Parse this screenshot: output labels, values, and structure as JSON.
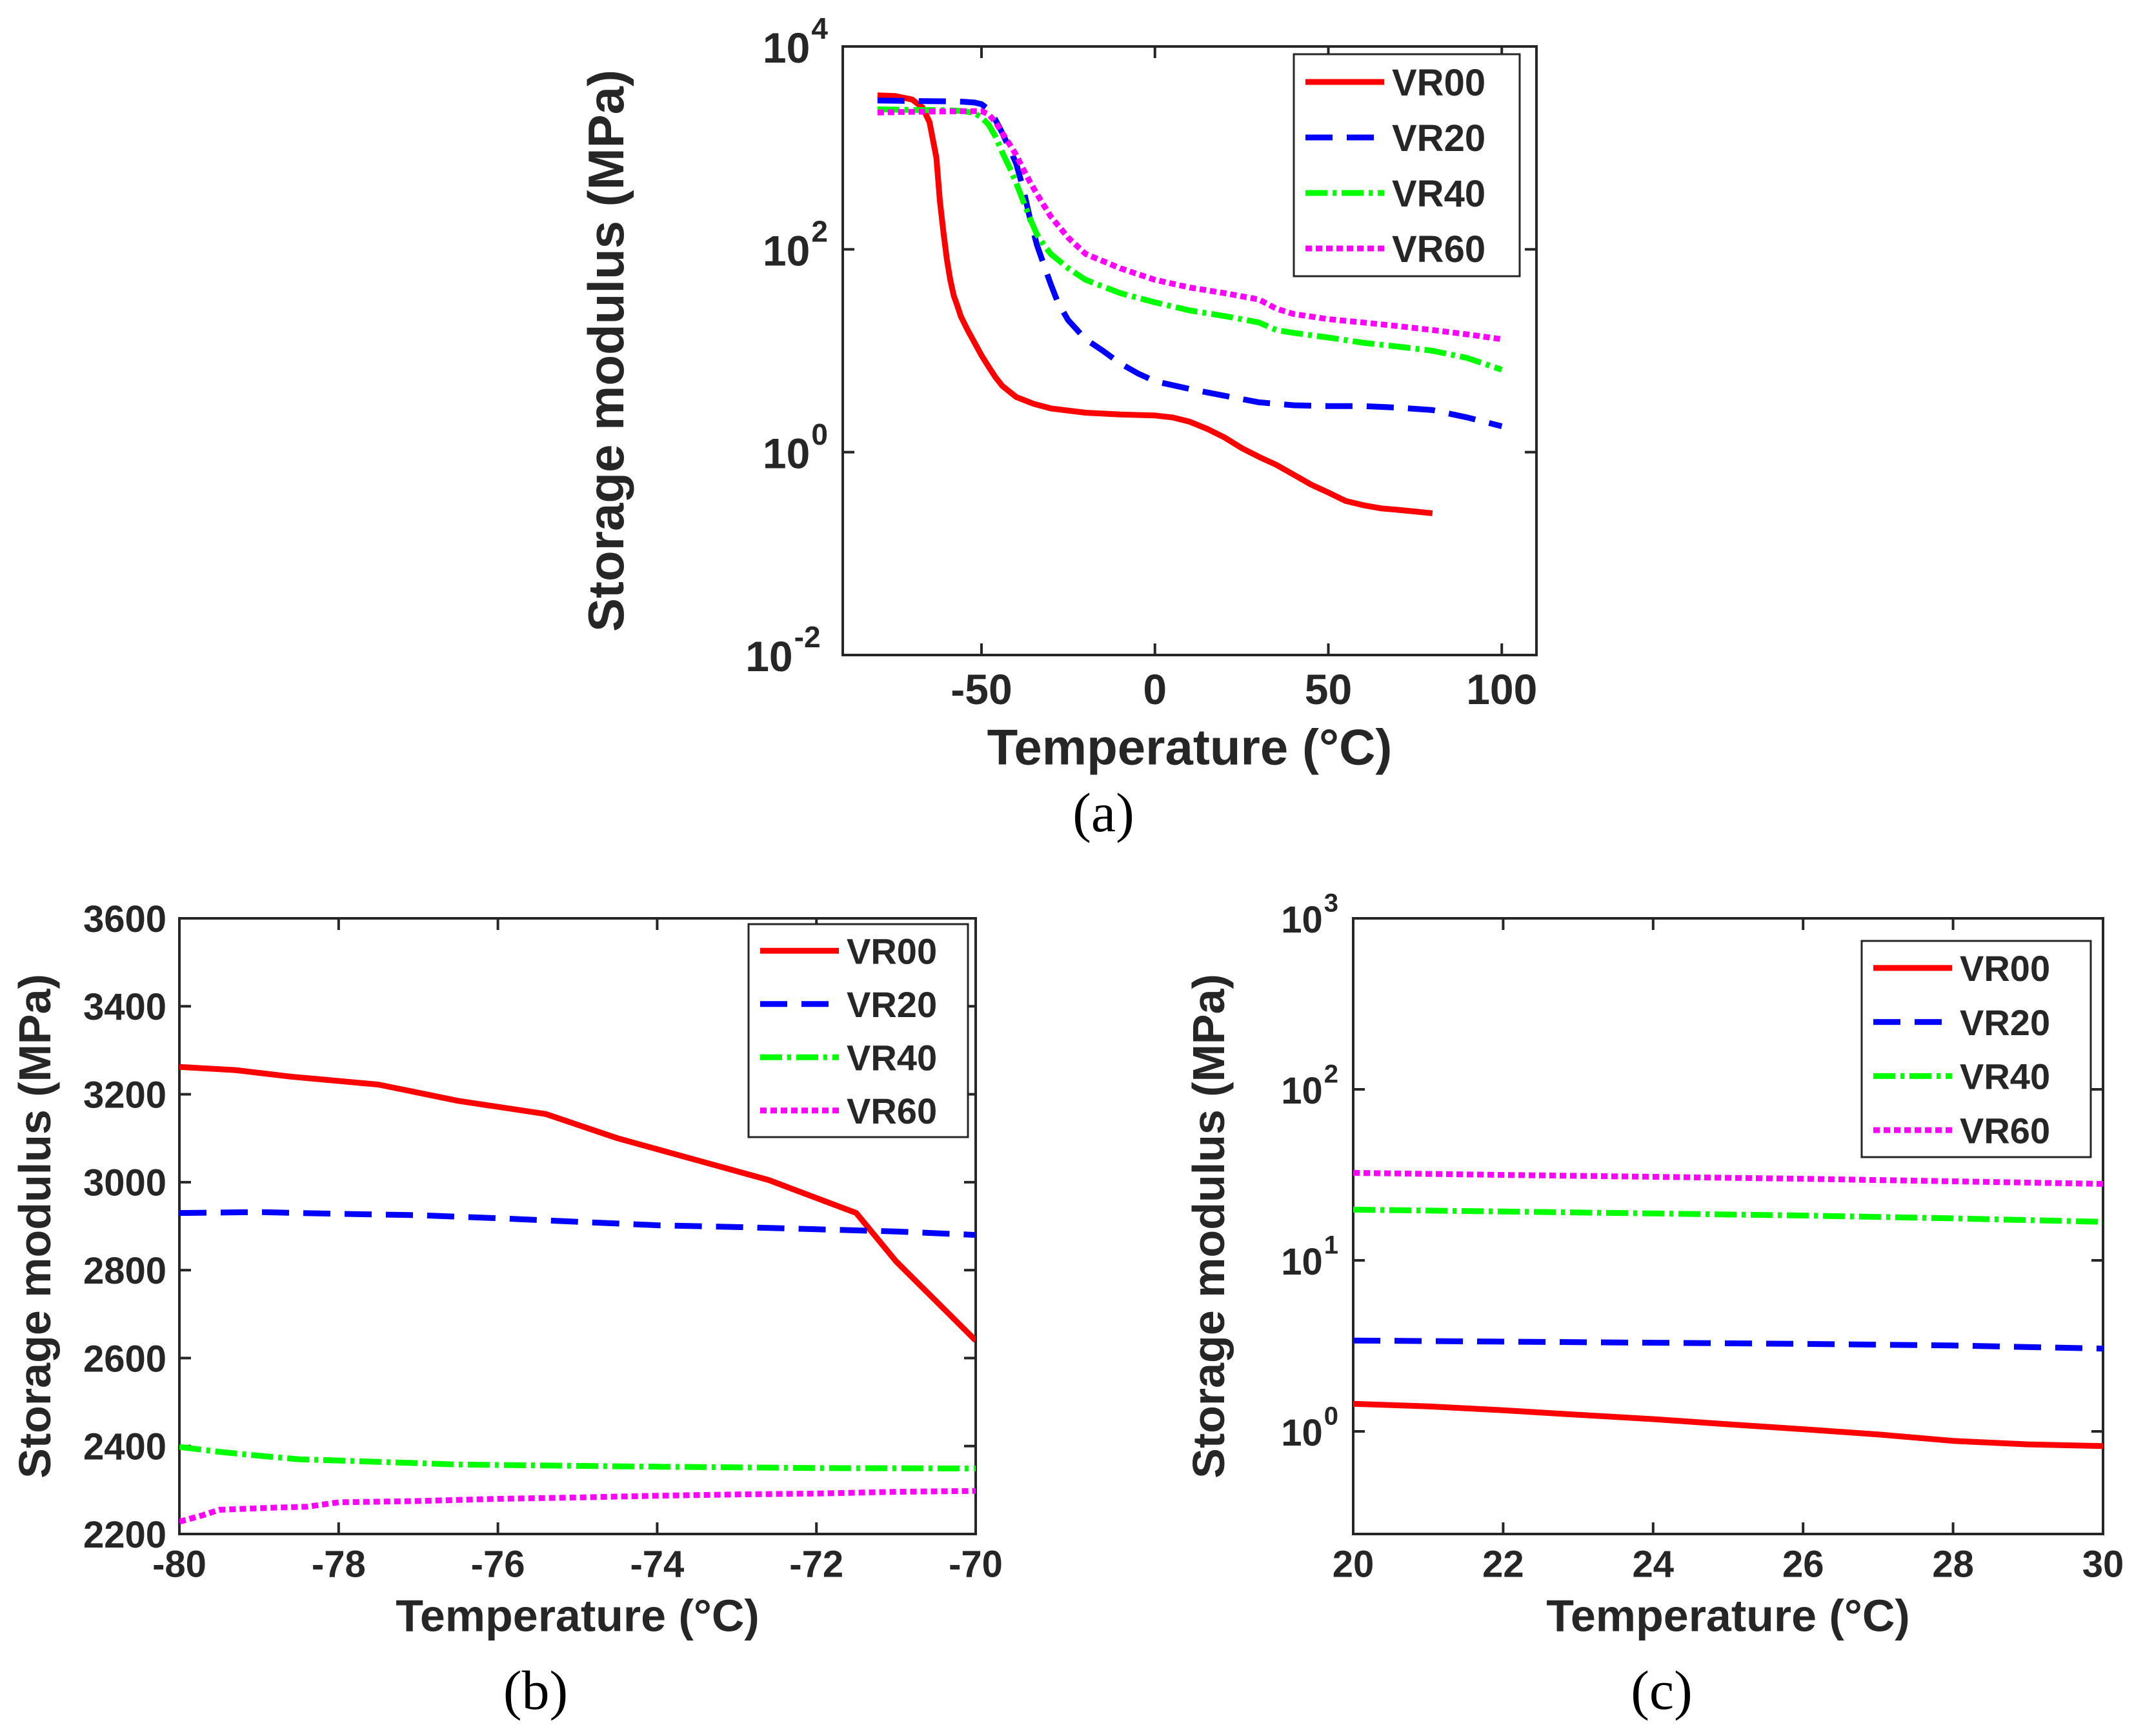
{
  "figure": {
    "captions": {
      "a": "(a)",
      "b": "(b)",
      "c": "(c)"
    }
  },
  "colors": {
    "VR00": "#ff0000",
    "VR20": "#0000ff",
    "VR40": "#00ff00",
    "VR60": "#ff00ff",
    "axis": "#262626"
  },
  "chart_data": [
    {
      "id": "a",
      "type": "line",
      "title": "",
      "xlabel": "Temperature (°C)",
      "ylabel": "Storage modulus (MPa)",
      "xlim": [
        -90,
        110
      ],
      "ylim_log10": [
        -2,
        4
      ],
      "yscale": "log",
      "xticks": [
        -50,
        0,
        50,
        100
      ],
      "xtick_labels": [
        "-50",
        "0",
        "50",
        "100"
      ],
      "yticks": [
        -2,
        0,
        2,
        4
      ],
      "ytick_labels": [
        {
          "base": "10",
          "exp": "-2"
        },
        {
          "base": "10",
          "exp": "0"
        },
        {
          "base": "10",
          "exp": "2"
        },
        {
          "base": "10",
          "exp": "4"
        }
      ],
      "legend_position": "top-right",
      "series": [
        {
          "name": "VR00",
          "style": "solid",
          "x": [
            -80,
            -75,
            -70,
            -67,
            -65,
            -63,
            -62,
            -61,
            -60,
            -59,
            -58,
            -57,
            -56,
            -54,
            -52,
            -50,
            -48,
            -46,
            -44,
            -40,
            -35,
            -30,
            -20,
            -10,
            0,
            5,
            10,
            15,
            20,
            25,
            30,
            35,
            40,
            45,
            50,
            55,
            60,
            65,
            70,
            75,
            80
          ],
          "y": [
            3300,
            3250,
            3000,
            2500,
            1800,
            800,
            300,
            150,
            80,
            50,
            35,
            28,
            22,
            16,
            12,
            9,
            7,
            5.5,
            4.5,
            3.5,
            3.0,
            2.7,
            2.45,
            2.35,
            2.3,
            2.2,
            2.0,
            1.7,
            1.4,
            1.1,
            0.9,
            0.75,
            0.6,
            0.48,
            0.4,
            0.33,
            0.3,
            0.28,
            0.27,
            0.26,
            0.25
          ]
        },
        {
          "name": "VR20",
          "style": "dashed",
          "x": [
            -80,
            -70,
            -60,
            -55,
            -52,
            -50,
            -48,
            -46,
            -44,
            -42,
            -40,
            -38,
            -36,
            -34,
            -32,
            -30,
            -28,
            -25,
            -20,
            -15,
            -10,
            -5,
            0,
            10,
            20,
            30,
            40,
            50,
            60,
            70,
            80,
            90,
            100
          ],
          "y": [
            2930,
            2900,
            2880,
            2850,
            2800,
            2700,
            2400,
            1900,
            1400,
            1000,
            700,
            400,
            200,
            110,
            70,
            45,
            30,
            20,
            13,
            10,
            7.5,
            6,
            5,
            4.2,
            3.6,
            3.1,
            2.9,
            2.85,
            2.85,
            2.75,
            2.6,
            2.2,
            1.8
          ]
        },
        {
          "name": "VR40",
          "style": "dashdot",
          "x": [
            -80,
            -70,
            -60,
            -55,
            -52,
            -50,
            -48,
            -46,
            -44,
            -42,
            -40,
            -38,
            -36,
            -34,
            -32,
            -30,
            -25,
            -20,
            -10,
            0,
            10,
            20,
            30,
            35,
            40,
            50,
            60,
            70,
            80,
            90,
            100
          ],
          "y": [
            2400,
            2370,
            2350,
            2300,
            2200,
            2000,
            1700,
            1300,
            900,
            650,
            450,
            300,
            200,
            140,
            110,
            90,
            65,
            50,
            37,
            30,
            25,
            22,
            19,
            16,
            15,
            13.5,
            12,
            11,
            10,
            8.5,
            6.5
          ]
        },
        {
          "name": "VR60",
          "style": "dotted",
          "x": [
            -80,
            -70,
            -60,
            -55,
            -52,
            -50,
            -48,
            -46,
            -44,
            -42,
            -40,
            -38,
            -36,
            -34,
            -32,
            -30,
            -25,
            -20,
            -10,
            0,
            10,
            20,
            30,
            35,
            40,
            50,
            60,
            70,
            80,
            90,
            100
          ],
          "y": [
            2230,
            2270,
            2290,
            2300,
            2300,
            2300,
            2150,
            1800,
            1400,
            1100,
            850,
            620,
            460,
            350,
            270,
            210,
            130,
            90,
            65,
            50,
            42,
            37,
            32,
            26,
            23,
            20.5,
            19,
            17.5,
            16,
            14.5,
            13
          ]
        }
      ]
    },
    {
      "id": "b",
      "type": "line",
      "title": "",
      "xlabel": "Temperature (°C)",
      "ylabel": "Storage modulus (MPa)",
      "xlim": [
        -80,
        -70
      ],
      "ylim": [
        2200,
        3600
      ],
      "yscale": "linear",
      "xticks": [
        -80,
        -78,
        -76,
        -74,
        -72,
        -70
      ],
      "xtick_labels": [
        "-80",
        "-78",
        "-76",
        "-74",
        "-72",
        "-70"
      ],
      "yticks": [
        2200,
        2400,
        2600,
        2800,
        3000,
        3200,
        3400,
        3600
      ],
      "ytick_labels": [
        "2200",
        "2400",
        "2600",
        "2800",
        "3000",
        "3200",
        "3400",
        "3600"
      ],
      "legend_position": "top-right",
      "series": [
        {
          "name": "VR00",
          "style": "solid",
          "x": [
            -80,
            -79.3,
            -78.6,
            -77.5,
            -76.5,
            -75.4,
            -74.5,
            -73.5,
            -72.6,
            -71.5,
            -71.0,
            -70.5,
            -70
          ],
          "y": [
            3262,
            3255,
            3240,
            3222,
            3185,
            3155,
            3100,
            3050,
            3005,
            2930,
            2820,
            2730,
            2640
          ]
        },
        {
          "name": "VR20",
          "style": "dashed",
          "x": [
            -80,
            -79,
            -78,
            -77,
            -76,
            -75,
            -74,
            -73,
            -72,
            -71,
            -70
          ],
          "y": [
            2930,
            2932,
            2928,
            2925,
            2918,
            2910,
            2902,
            2898,
            2893,
            2888,
            2880
          ]
        },
        {
          "name": "VR40",
          "style": "dashdot",
          "x": [
            -80,
            -79.5,
            -79,
            -78.5,
            -77.5,
            -76.5,
            -75,
            -74,
            -72,
            -70
          ],
          "y": [
            2398,
            2387,
            2378,
            2370,
            2364,
            2358,
            2355,
            2353,
            2350,
            2349
          ]
        },
        {
          "name": "VR60",
          "style": "dotted",
          "x": [
            -80,
            -79.7,
            -79.5,
            -78.8,
            -78.4,
            -78,
            -77,
            -76,
            -75,
            -74,
            -73,
            -72,
            -71,
            -70
          ],
          "y": [
            2228,
            2243,
            2255,
            2260,
            2262,
            2272,
            2275,
            2280,
            2283,
            2287,
            2290,
            2292,
            2296,
            2298
          ]
        }
      ]
    },
    {
      "id": "c",
      "type": "line",
      "title": "",
      "xlabel": "Temperature (°C)",
      "ylabel": "Storage modulus (MPa)",
      "xlim": [
        20,
        30
      ],
      "ylim_log10": [
        -0.6,
        3
      ],
      "yscale": "log",
      "xticks": [
        20,
        22,
        24,
        26,
        28,
        30
      ],
      "xtick_labels": [
        "20",
        "22",
        "24",
        "26",
        "28",
        "30"
      ],
      "yticks": [
        0,
        1,
        2,
        3
      ],
      "ytick_labels": [
        {
          "base": "10",
          "exp": "0"
        },
        {
          "base": "10",
          "exp": "1"
        },
        {
          "base": "10",
          "exp": "2"
        },
        {
          "base": "10",
          "exp": "3"
        }
      ],
      "legend_position": "top-right",
      "series": [
        {
          "name": "VR00",
          "style": "solid",
          "x": [
            20,
            21,
            22,
            23,
            24,
            25,
            26,
            27,
            28,
            29,
            30
          ],
          "y": [
            1.45,
            1.4,
            1.33,
            1.25,
            1.18,
            1.1,
            1.03,
            0.96,
            0.88,
            0.84,
            0.82
          ]
        },
        {
          "name": "VR20",
          "style": "dashed",
          "x": [
            20,
            22,
            24,
            26,
            28,
            30
          ],
          "y": [
            3.4,
            3.35,
            3.3,
            3.25,
            3.18,
            3.05
          ]
        },
        {
          "name": "VR40",
          "style": "dashdot",
          "x": [
            20,
            22,
            24,
            26,
            28,
            30
          ],
          "y": [
            19.8,
            19.3,
            18.8,
            18.3,
            17.6,
            16.8
          ]
        },
        {
          "name": "VR60",
          "style": "dotted",
          "x": [
            20,
            22,
            24,
            26,
            28,
            30
          ],
          "y": [
            32.5,
            31.6,
            30.8,
            30.0,
            29.0,
            28.0
          ]
        }
      ]
    }
  ]
}
